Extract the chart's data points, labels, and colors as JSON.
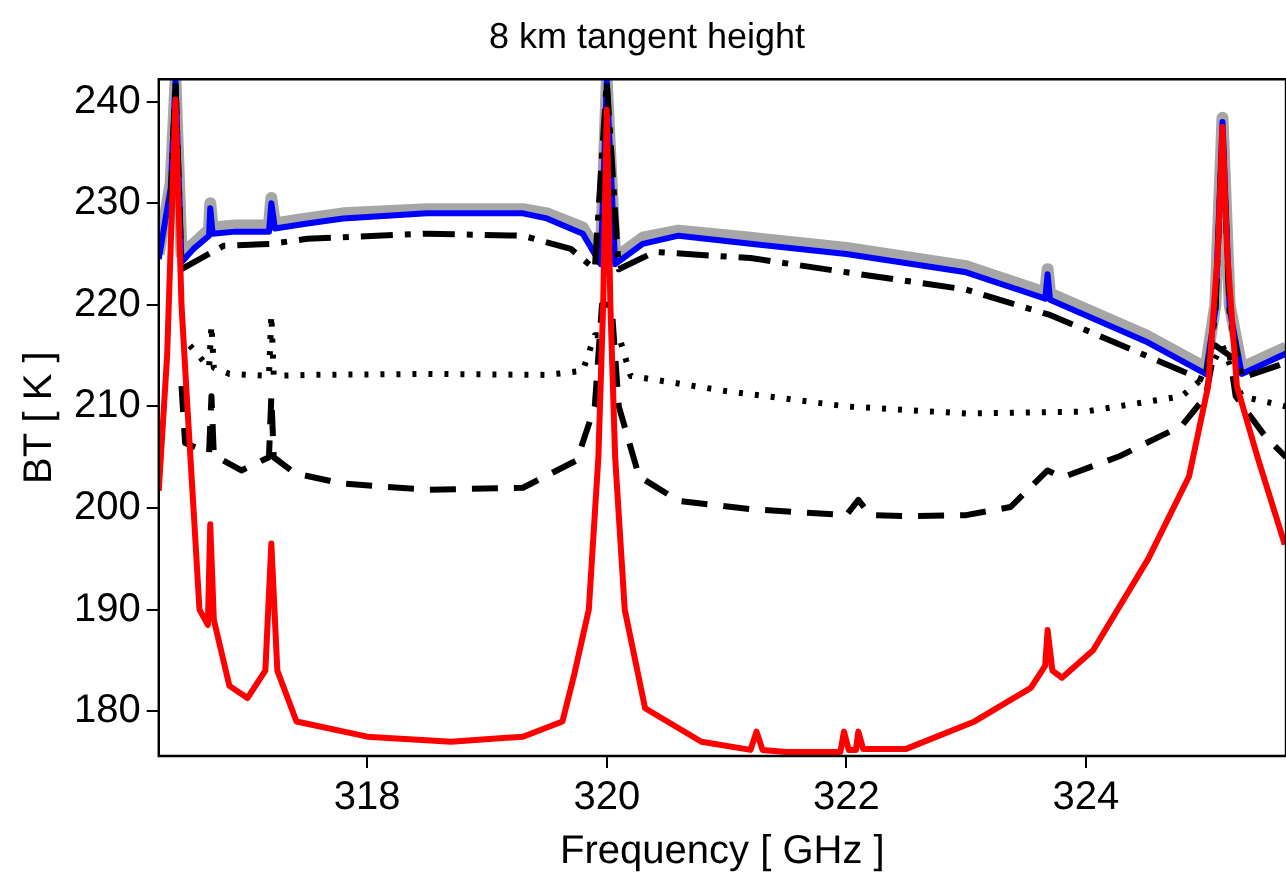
{
  "chart_data": {
    "type": "line",
    "title": "8 km tangent height",
    "xlabel": "Frequency [ GHz ]",
    "ylabel": "BT [ K ]",
    "xlim": [
      316.26,
      325.67
    ],
    "ylim": [
      175.6,
      242.2
    ],
    "xticks": [
      318,
      320,
      322,
      324
    ],
    "yticks": [
      180,
      190,
      200,
      210,
      220,
      230,
      240
    ],
    "grid": false,
    "legend": false,
    "marker": "none",
    "series": [
      {
        "color": "#a6a6a6",
        "line_style": "solid",
        "x": [
          316.26,
          316.36,
          316.4,
          316.45,
          316.55,
          316.68,
          316.69,
          316.71,
          316.9,
          317.18,
          317.2,
          317.23,
          317.5,
          317.8,
          318.5,
          319.3,
          319.5,
          319.8,
          319.95,
          320,
          320.07,
          320.3,
          320.6,
          321.2,
          322,
          323,
          323.66,
          323.68,
          323.7,
          324.5,
          325,
          325.08,
          325.14,
          325.2,
          325.3,
          325.67
        ],
        "values": [
          225,
          232,
          242,
          225,
          226,
          227.4,
          230,
          227.6,
          227.8,
          227.8,
          230.5,
          228,
          228.5,
          229,
          229.4,
          229.4,
          229,
          227.6,
          224.6,
          242,
          224.6,
          226.6,
          227.3,
          226.6,
          225.6,
          223.8,
          221.2,
          223.5,
          221.1,
          217,
          213.8,
          220,
          238.4,
          220,
          213.8,
          215.8
        ]
      },
      {
        "color": "#0000ff",
        "line_style": "solid",
        "x": [
          316.26,
          316.36,
          316.4,
          316.45,
          316.55,
          316.68,
          316.69,
          316.71,
          316.9,
          317.18,
          317.2,
          317.23,
          317.5,
          317.8,
          318.5,
          319.3,
          319.5,
          319.8,
          319.95,
          320,
          320.07,
          320.3,
          320.6,
          321.2,
          322,
          323,
          323.66,
          323.68,
          323.7,
          324.5,
          325,
          325.08,
          325.14,
          325.2,
          325.3,
          325.67
        ],
        "values": [
          224.5,
          231.5,
          242,
          224.2,
          225.5,
          226.8,
          229.5,
          227,
          227.2,
          227.2,
          230,
          227.5,
          228,
          228.5,
          229,
          229,
          228.5,
          227,
          224,
          242,
          224,
          226,
          226.8,
          226,
          225,
          223.2,
          220.6,
          223,
          220.5,
          216.4,
          213.2,
          219.5,
          238,
          219.5,
          213.2,
          215.2
        ]
      },
      {
        "color": "#000000",
        "line_style": "dashdot",
        "x": [
          316.36,
          316.4,
          316.45,
          316.8,
          317.2,
          317.5,
          318.5,
          319.3,
          319.7,
          319.9,
          320,
          320.1,
          320.4,
          321.2,
          322,
          323,
          323.7,
          324.5,
          325,
          325.08,
          325.14,
          325.2,
          325.3,
          325.67
        ],
        "values": [
          230,
          242,
          223.5,
          225.8,
          226,
          226.5,
          227,
          226.8,
          225.5,
          223.5,
          242,
          223.5,
          225.2,
          224.6,
          223.2,
          221.5,
          219,
          215,
          212.5,
          219,
          237,
          219,
          212.8,
          214.3
        ]
      },
      {
        "color": "#000000",
        "line_style": "dotted",
        "x": [
          316.52,
          316.68,
          316.7,
          316.72,
          316.85,
          317.18,
          317.2,
          317.22,
          317.5,
          318.5,
          319.5,
          319.8,
          319.9,
          320.1,
          320.2,
          321,
          322,
          323,
          324,
          324.8,
          325,
          325.14,
          325.3,
          325.67
        ],
        "values": [
          216,
          213.8,
          218,
          213.8,
          213.2,
          213,
          219,
          213,
          213.1,
          213.2,
          213.1,
          213.5,
          217,
          217,
          213,
          211.5,
          210,
          209.3,
          209.5,
          211,
          213,
          216,
          211,
          210
        ]
      },
      {
        "color": "#000000",
        "line_style": "dashed",
        "x": [
          316.45,
          316.48,
          316.68,
          316.7,
          316.72,
          316.95,
          317.18,
          317.2,
          317.22,
          317.4,
          317.8,
          318.5,
          319.3,
          319.75,
          319.9,
          319.96,
          320.04,
          320.1,
          320.27,
          320.6,
          321.2,
          322,
          322.1,
          322.2,
          322.5,
          323,
          323.37,
          323.68,
          323.8,
          324.28,
          324.8,
          325,
          325.08,
          325.2,
          325.25,
          325.5,
          325.67
        ],
        "values": [
          212,
          206.4,
          205.4,
          211,
          205.2,
          203.7,
          205,
          211,
          205,
          203.4,
          202.4,
          201.8,
          202,
          204.7,
          210,
          220,
          220,
          210,
          203.1,
          200.7,
          199.9,
          199.3,
          200.8,
          199.3,
          199.2,
          199.3,
          200.1,
          203.7,
          203,
          205.1,
          208.1,
          211,
          216,
          215,
          211,
          207,
          205
        ]
      },
      {
        "color": "#ff0000",
        "line_style": "solid",
        "x": [
          316.26,
          316.33,
          316.4,
          316.45,
          316.5,
          316.55,
          316.6,
          316.67,
          316.69,
          316.72,
          316.85,
          317,
          317.15,
          317.2,
          317.25,
          317.41,
          318,
          318.7,
          319.3,
          319.63,
          319.73,
          319.85,
          319.93,
          319.97,
          320,
          320.03,
          320.07,
          320.15,
          320.32,
          320.79,
          321.2,
          321.25,
          321.3,
          321.5,
          321.95,
          321.98,
          322.02,
          322.08,
          322.1,
          322.14,
          322.5,
          323.07,
          323.54,
          323.66,
          323.68,
          323.72,
          323.8,
          324.06,
          324.52,
          324.86,
          325.02,
          325.1,
          325.14,
          325.18,
          325.26,
          325.43,
          325.66
        ],
        "values": [
          201.7,
          215,
          240.2,
          220,
          209.8,
          200,
          190,
          188.5,
          198.4,
          189,
          182.5,
          181.3,
          184,
          196.5,
          184,
          179,
          177.5,
          177,
          177.5,
          179,
          183.7,
          190,
          205,
          220,
          239.2,
          220,
          205,
          190,
          180.3,
          177,
          176.2,
          178,
          176.2,
          176,
          176,
          178,
          176.2,
          176.2,
          178,
          176.3,
          176.3,
          179,
          182.3,
          184.5,
          188,
          184,
          183.3,
          186,
          195,
          203.1,
          212,
          225,
          237.5,
          225,
          212,
          205.1,
          196.4
        ]
      }
    ]
  }
}
